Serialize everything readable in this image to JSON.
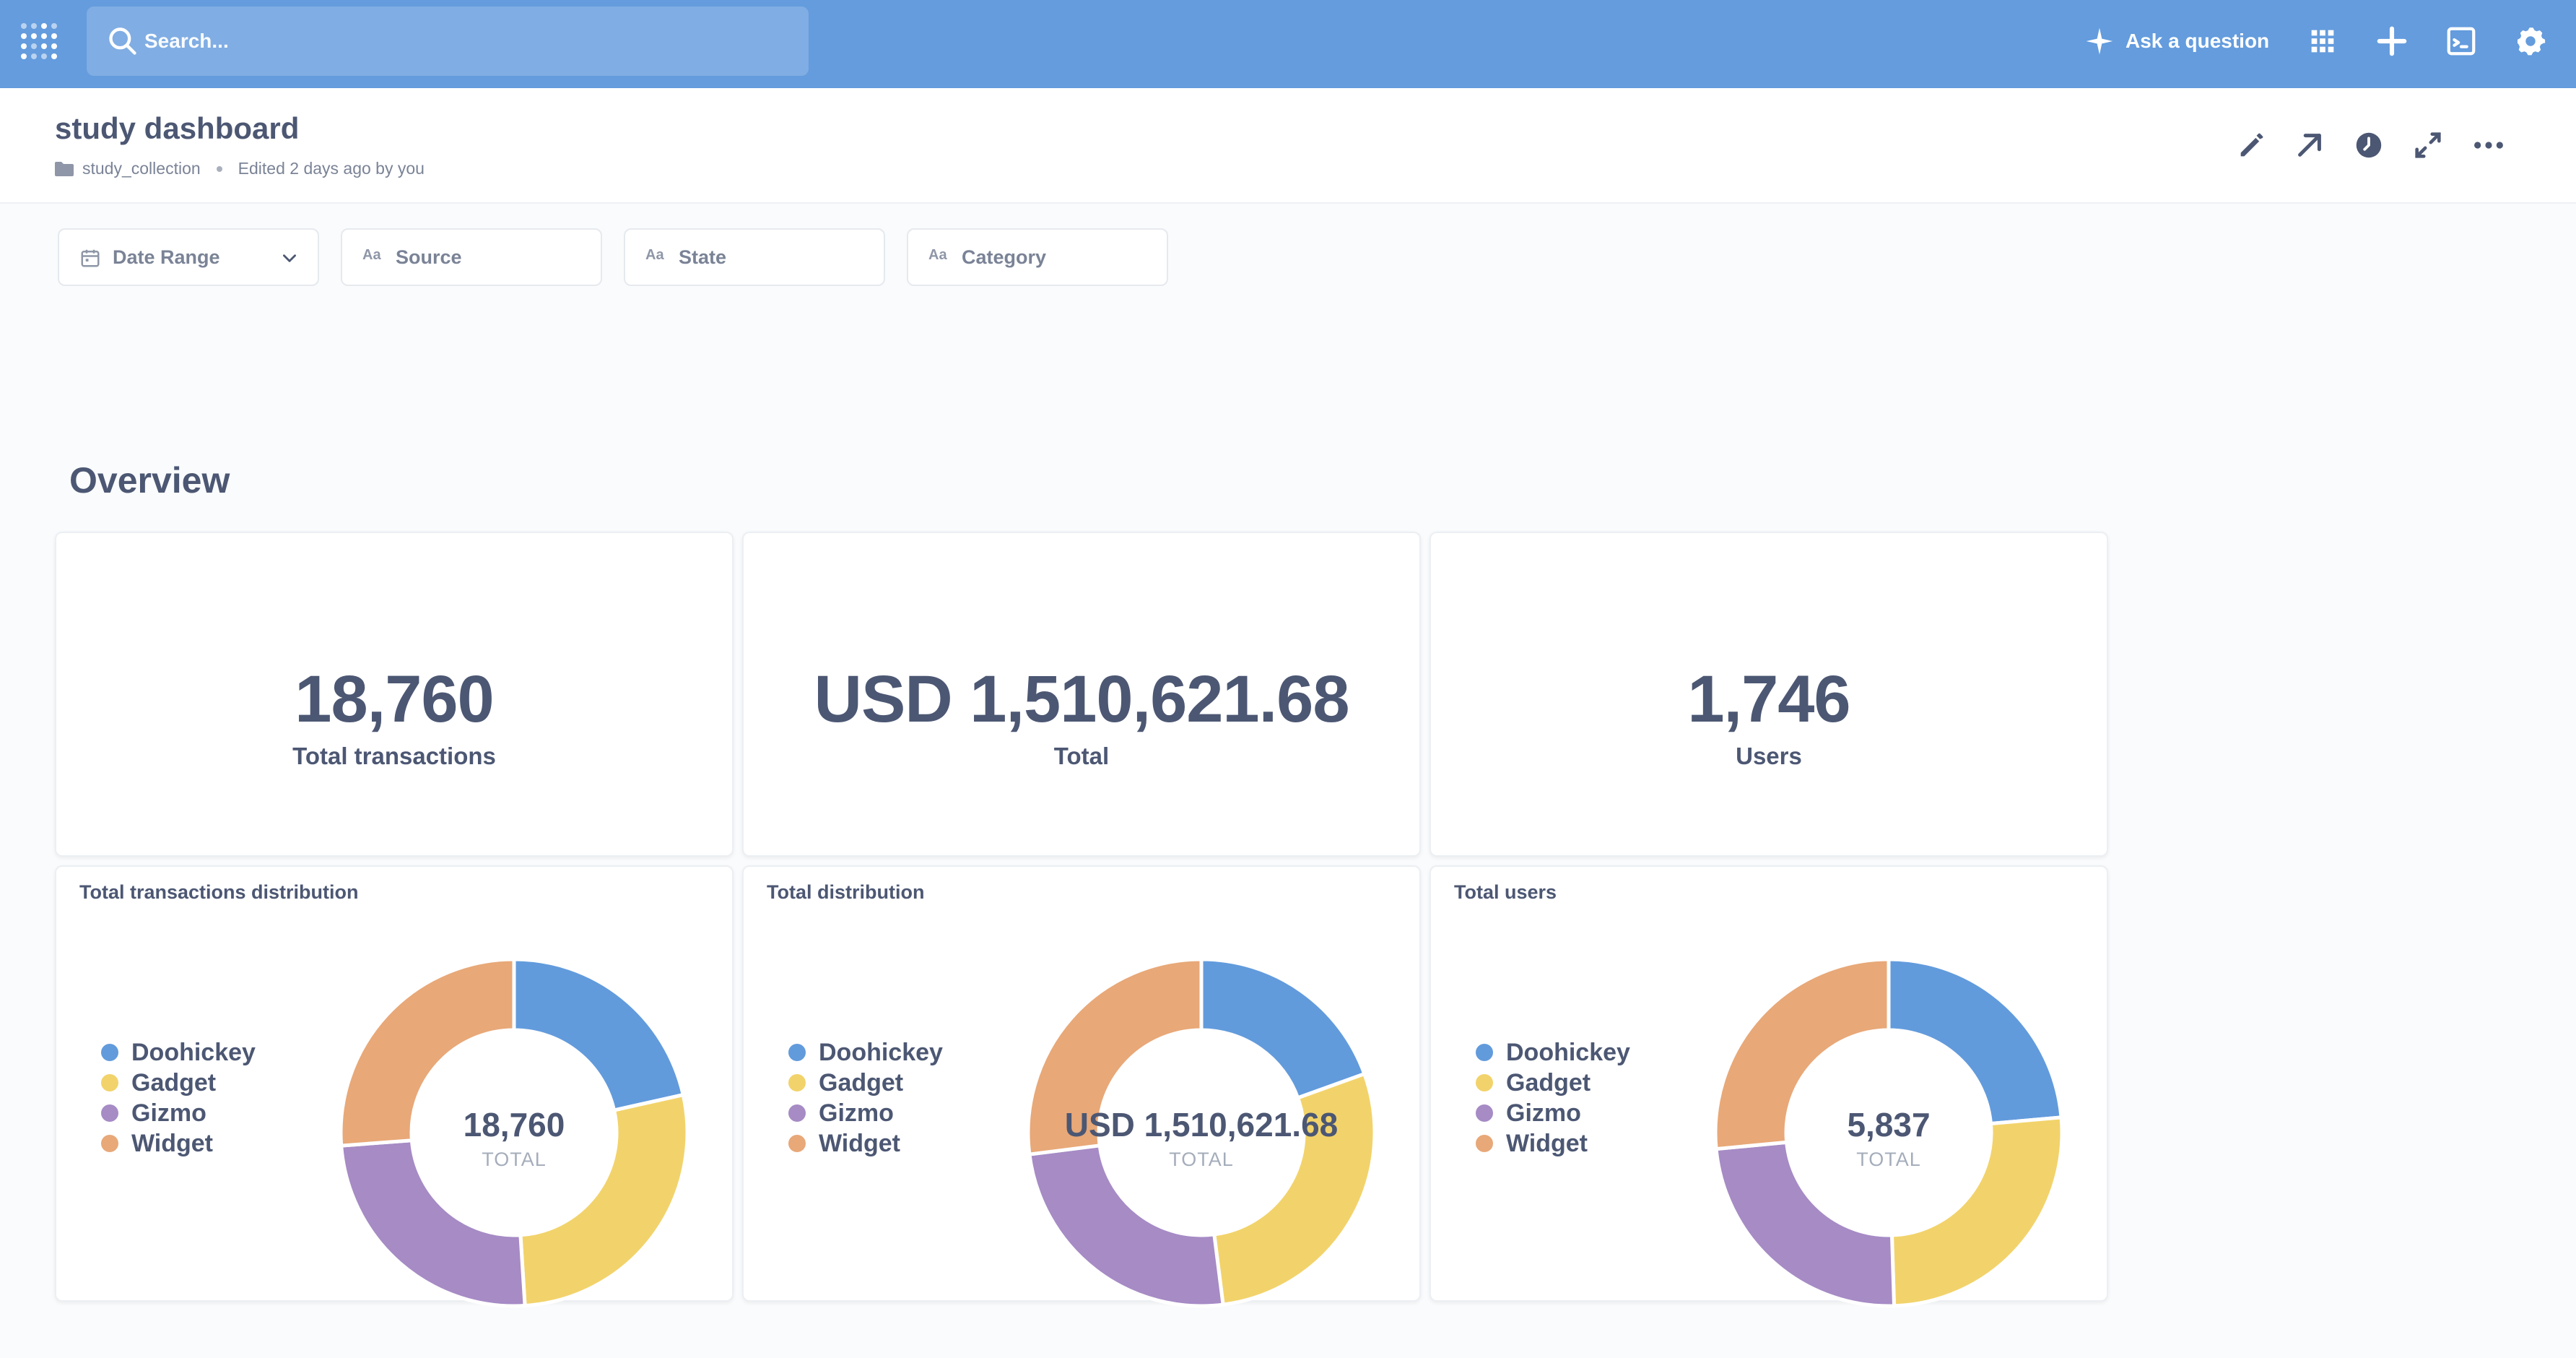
{
  "nav": {
    "search_placeholder": "Search...",
    "ask_label": "Ask a question",
    "brand_color": "#649cdd"
  },
  "header": {
    "title": "study dashboard",
    "collection": "study_collection",
    "edited": "Edited 2 days ago by you"
  },
  "filters": [
    {
      "label": "Date Range",
      "icon": "calendar-icon"
    },
    {
      "label": "Source",
      "icon": "text-type-icon",
      "icon_text": "Aa"
    },
    {
      "label": "State",
      "icon": "text-type-icon",
      "icon_text": "Aa"
    },
    {
      "label": "Category",
      "icon": "text-type-icon",
      "icon_text": "Aa"
    }
  ],
  "section": {
    "title": "Overview"
  },
  "scalars": [
    {
      "value": "18,760",
      "label": "Total transactions"
    },
    {
      "value": "USD 1,510,621.68",
      "label": "Total"
    },
    {
      "value": "1,746",
      "label": "Users"
    }
  ],
  "chart_data": [
    {
      "type": "pie",
      "title": "Total transactions distribution",
      "categories": [
        "Doohickey",
        "Gadget",
        "Gizmo",
        "Widget"
      ],
      "values": [
        21.5,
        27.5,
        24.8,
        26.2
      ],
      "center_value": "18,760",
      "center_label": "TOTAL",
      "colors": [
        "#629bdc",
        "#f2d36b",
        "#a68bc5",
        "#e8a878"
      ]
    },
    {
      "type": "pie",
      "title": "Total distribution",
      "categories": [
        "Doohickey",
        "Gadget",
        "Gizmo",
        "Widget"
      ],
      "values": [
        19.5,
        28.5,
        25.0,
        27.0
      ],
      "center_value": "USD 1,510,621.68",
      "center_label": "TOTAL",
      "colors": [
        "#629bdc",
        "#f2d36b",
        "#a68bc5",
        "#e8a878"
      ]
    },
    {
      "type": "pie",
      "title": "Total users",
      "categories": [
        "Doohickey",
        "Gadget",
        "Gizmo",
        "Widget"
      ],
      "values": [
        23.6,
        25.9,
        24.0,
        26.5
      ],
      "center_value": "5,837",
      "center_label": "TOTAL",
      "colors": [
        "#629bdc",
        "#f2d36b",
        "#a68bc5",
        "#e8a878"
      ]
    }
  ]
}
